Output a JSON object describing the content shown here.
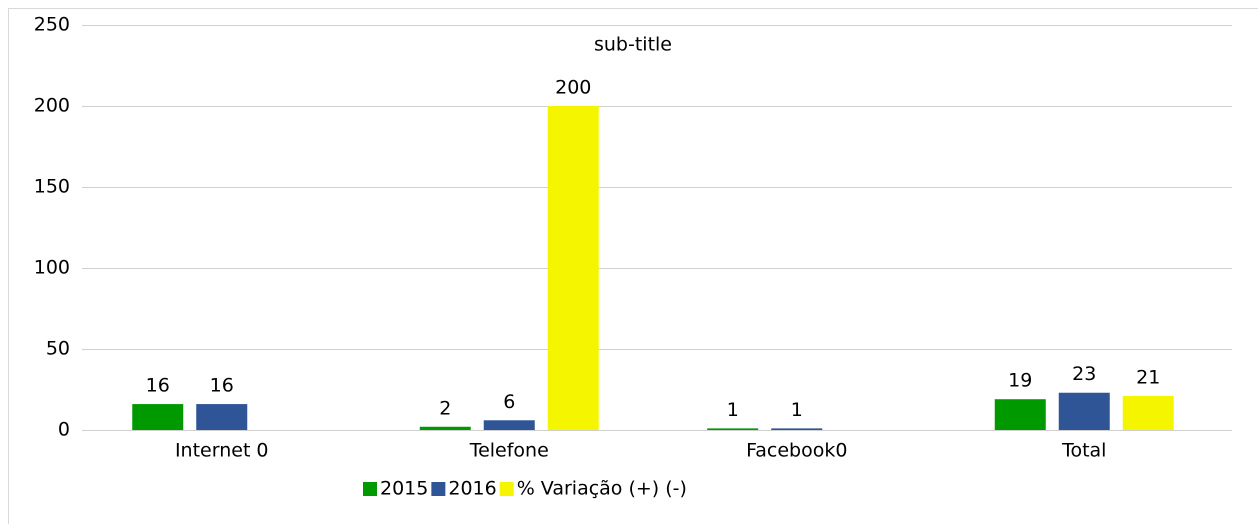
{
  "chart_data": {
    "type": "bar",
    "subtitle": "sub-title",
    "categories": [
      "Internet 0",
      "Telefone",
      "Facebook0",
      "Total"
    ],
    "series": [
      {
        "name": "2015",
        "color": "#009900",
        "values": [
          16,
          2,
          1,
          19
        ]
      },
      {
        "name": "2016",
        "color": "#2f5597",
        "values": [
          16,
          6,
          1,
          23
        ]
      },
      {
        "name": "% Variação (+) (-)",
        "color": "#f5f500",
        "values": [
          null,
          200,
          null,
          21
        ]
      }
    ],
    "ylim": [
      0,
      250
    ],
    "yticks": [
      0,
      50,
      100,
      150,
      200,
      250
    ],
    "grid": true,
    "legend": "bottom"
  }
}
